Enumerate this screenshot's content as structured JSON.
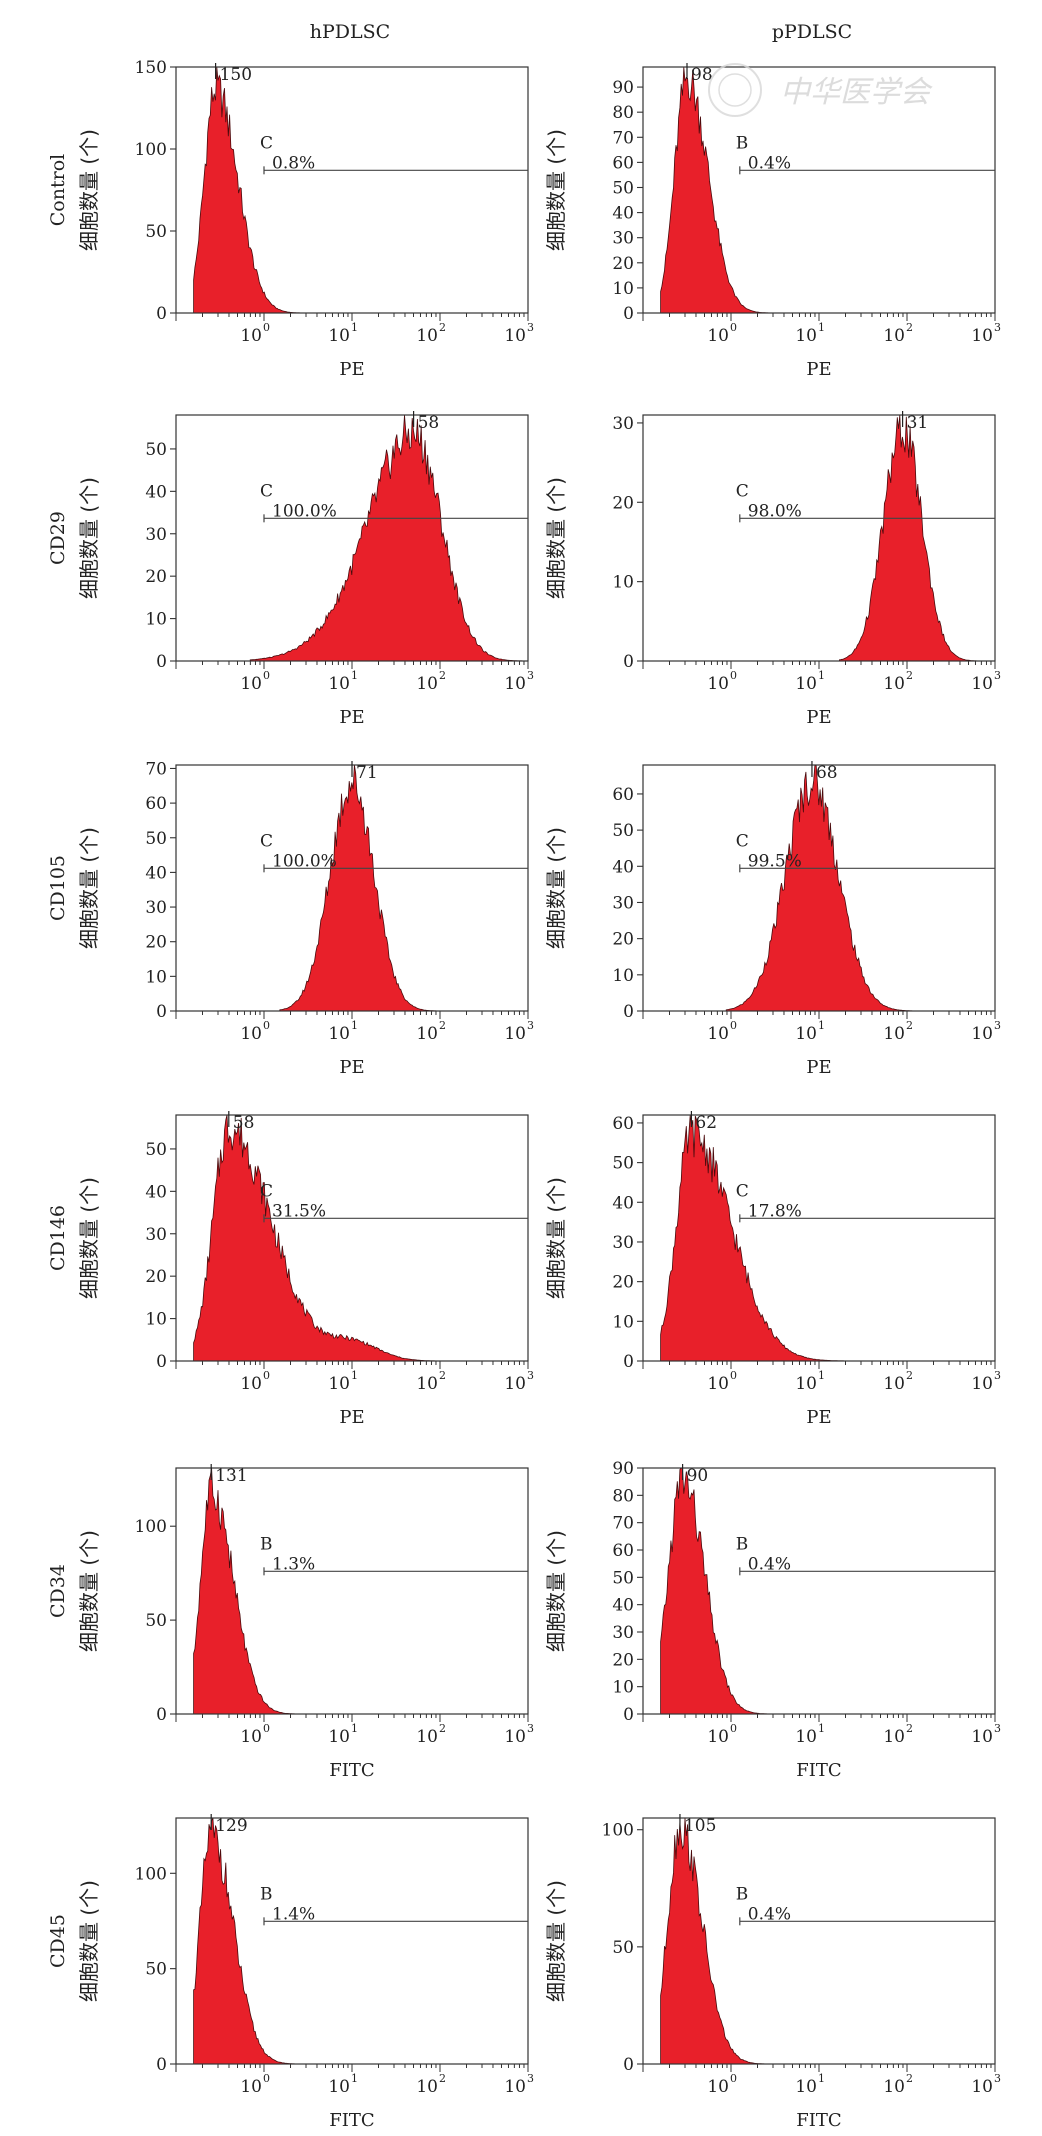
{
  "columns": [
    "hPDLSC",
    "pPDLSC"
  ],
  "y_label": "细胞数量 (个)",
  "watermark_text": "中华医学会",
  "chart_data": [
    {
      "type": "histogram",
      "column": "hPDLSC",
      "row": "Control",
      "xlabel": "PE",
      "ylim": [
        0,
        150
      ],
      "yticks": [
        0,
        50,
        100,
        150
      ],
      "peak_label": "150",
      "peak_log10x": -0.55,
      "spread": [
        0.13,
        0.25
      ],
      "gate_letter": "C",
      "gate_percent": "0.8%",
      "gate_start_log10x": 0.0,
      "xticks": [
        "10",
        "10",
        "10",
        "10"
      ],
      "xtick_exponents": [
        "0",
        "1",
        "2",
        "3"
      ]
    },
    {
      "type": "histogram",
      "column": "pPDLSC",
      "row": "Control",
      "xlabel": "PE",
      "ylim": [
        0,
        98
      ],
      "yticks": [
        0,
        10,
        20,
        30,
        40,
        50,
        60,
        70,
        80,
        90
      ],
      "peak_label": "98",
      "peak_log10x": -0.5,
      "spread": [
        0.14,
        0.24
      ],
      "gate_letter": "B",
      "gate_percent": "0.4%",
      "gate_start_log10x": 0.1,
      "xticks": [
        "10",
        "10",
        "10",
        "10"
      ],
      "xtick_exponents": [
        "0",
        "1",
        "2",
        "3"
      ]
    },
    {
      "type": "histogram",
      "column": "hPDLSC",
      "row": "CD29",
      "xlabel": "PE",
      "ylim": [
        0,
        58
      ],
      "yticks": [
        0,
        10,
        20,
        30,
        40,
        50
      ],
      "peak_label": "58",
      "peak_log10x": 1.7,
      "spread": [
        0.5,
        0.32
      ],
      "shoulder": {
        "log10x": 0.85,
        "height": 0.05,
        "width": 0.45
      },
      "gate_letter": "C",
      "gate_percent": "100.0%",
      "gate_start_log10x": 0.0,
      "xticks": [
        "10",
        "10",
        "10",
        "10"
      ],
      "xtick_exponents": [
        "0",
        "1",
        "2",
        "3"
      ]
    },
    {
      "type": "histogram",
      "column": "pPDLSC",
      "row": "CD29",
      "xlabel": "PE",
      "ylim": [
        0,
        31
      ],
      "yticks": [
        0,
        10,
        20,
        30
      ],
      "peak_label": "31",
      "peak_log10x": 1.95,
      "spread": [
        0.22,
        0.22
      ],
      "gate_letter": "C",
      "gate_percent": "98.0%",
      "gate_start_log10x": 0.1,
      "xticks": [
        "10",
        "10",
        "10",
        "10"
      ],
      "xtick_exponents": [
        "0",
        "1",
        "2",
        "3"
      ]
    },
    {
      "type": "histogram",
      "column": "hPDLSC",
      "row": "CD105",
      "xlabel": "PE",
      "ylim": [
        0,
        71
      ],
      "yticks": [
        0,
        10,
        20,
        30,
        40,
        50,
        60,
        70
      ],
      "peak_label": "71",
      "peak_log10x": 1.0,
      "spread": [
        0.25,
        0.25
      ],
      "gate_letter": "C",
      "gate_percent": "100.0%",
      "gate_start_log10x": 0.0,
      "xticks": [
        "10",
        "10",
        "10",
        "10"
      ],
      "xtick_exponents": [
        "0",
        "1",
        "2",
        "3"
      ]
    },
    {
      "type": "histogram",
      "column": "pPDLSC",
      "row": "CD105",
      "xlabel": "PE",
      "ylim": [
        0,
        68
      ],
      "yticks": [
        0,
        10,
        20,
        30,
        40,
        50,
        60
      ],
      "peak_label": "68",
      "peak_log10x": 0.92,
      "spread": [
        0.3,
        0.3
      ],
      "gate_letter": "C",
      "gate_percent": "99.5%",
      "gate_start_log10x": 0.1,
      "xticks": [
        "10",
        "10",
        "10",
        "10"
      ],
      "xtick_exponents": [
        "0",
        "1",
        "2",
        "3"
      ]
    },
    {
      "type": "histogram",
      "column": "hPDLSC",
      "row": "CD146",
      "xlabel": "PE",
      "ylim": [
        0,
        58
      ],
      "yticks": [
        0,
        10,
        20,
        30,
        40,
        50
      ],
      "peak_label": "58",
      "peak_log10x": -0.4,
      "spread": [
        0.18,
        0.48
      ],
      "shoulder": {
        "log10x": 1.0,
        "height": 0.08,
        "width": 0.3
      },
      "gate_letter": "C",
      "gate_percent": "31.5%",
      "gate_start_log10x": 0.0,
      "xticks": [
        "10",
        "10",
        "10",
        "10"
      ],
      "xtick_exponents": [
        "0",
        "1",
        "2",
        "3"
      ]
    },
    {
      "type": "histogram",
      "column": "pPDLSC",
      "row": "CD146",
      "xlabel": "PE",
      "ylim": [
        0,
        62
      ],
      "yticks": [
        0,
        10,
        20,
        30,
        40,
        50,
        60
      ],
      "peak_label": "62",
      "peak_log10x": -0.45,
      "spread": [
        0.17,
        0.45
      ],
      "gate_letter": "C",
      "gate_percent": "17.8%",
      "gate_start_log10x": 0.1,
      "xticks": [
        "10",
        "10",
        "10",
        "10"
      ],
      "xtick_exponents": [
        "0",
        "1",
        "2",
        "3"
      ]
    },
    {
      "type": "histogram",
      "column": "hPDLSC",
      "row": "CD34",
      "xlabel": "FITC",
      "ylim": [
        0,
        131
      ],
      "yticks": [
        0,
        50,
        100
      ],
      "peak_label": "131",
      "peak_log10x": -0.6,
      "spread": [
        0.12,
        0.25
      ],
      "gate_letter": "B",
      "gate_percent": "1.3%",
      "gate_start_log10x": 0.0,
      "xticks": [
        "10",
        "10",
        "10",
        "10"
      ],
      "xtick_exponents": [
        "0",
        "1",
        "2",
        "3"
      ]
    },
    {
      "type": "histogram",
      "column": "pPDLSC",
      "row": "CD34",
      "xlabel": "FITC",
      "ylim": [
        0,
        90
      ],
      "yticks": [
        0,
        10,
        20,
        30,
        40,
        50,
        60,
        70,
        80,
        90
      ],
      "peak_label": "90",
      "peak_log10x": -0.55,
      "spread": [
        0.16,
        0.25
      ],
      "gate_letter": "B",
      "gate_percent": "0.4%",
      "gate_start_log10x": 0.1,
      "xticks": [
        "10",
        "10",
        "10",
        "10"
      ],
      "xtick_exponents": [
        "0",
        "1",
        "2",
        "3"
      ]
    },
    {
      "type": "histogram",
      "column": "hPDLSC",
      "row": "CD45",
      "xlabel": "FITC",
      "ylim": [
        0,
        129
      ],
      "yticks": [
        0,
        50,
        100
      ],
      "peak_label": "129",
      "peak_log10x": -0.6,
      "spread": [
        0.13,
        0.25
      ],
      "gate_letter": "B",
      "gate_percent": "1.4%",
      "gate_start_log10x": 0.0,
      "xticks": [
        "10",
        "10",
        "10",
        "10"
      ],
      "xtick_exponents": [
        "0",
        "1",
        "2",
        "3"
      ]
    },
    {
      "type": "histogram",
      "column": "pPDLSC",
      "row": "CD45",
      "xlabel": "FITC",
      "ylim": [
        0,
        105
      ],
      "yticks": [
        0,
        50,
        100
      ],
      "peak_label": "105",
      "peak_log10x": -0.58,
      "spread": [
        0.14,
        0.25
      ],
      "gate_letter": "B",
      "gate_percent": "0.4%",
      "gate_start_log10x": 0.1,
      "xticks": [
        "10",
        "10",
        "10",
        "10"
      ],
      "xtick_exponents": [
        "0",
        "1",
        "2",
        "3"
      ]
    }
  ]
}
